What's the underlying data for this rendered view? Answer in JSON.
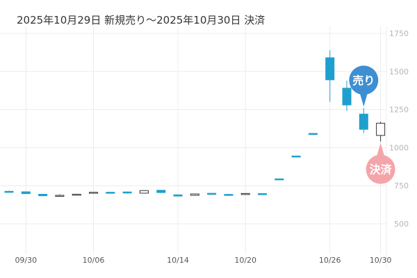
{
  "chart_data": {
    "type": "candlestick",
    "title": "2025年10月29日 新規売り～2025年10月30日 決済",
    "ylim": [
      350,
      1800
    ],
    "y_ticks": [
      "500",
      "750",
      "1000",
      "1250",
      "1500",
      "1750"
    ],
    "grid": true,
    "x_ticks": [
      {
        "label": "09/30",
        "index": 1
      },
      {
        "label": "10/06",
        "index": 5
      },
      {
        "label": "10/14",
        "index": 10
      },
      {
        "label": "10/20",
        "index": 14
      },
      {
        "label": "10/26",
        "index": 19
      },
      {
        "label": "10/30",
        "index": 22
      }
    ],
    "candles": [
      {
        "o": 713,
        "h": 717,
        "l": 706,
        "c": 709
      },
      {
        "o": 710,
        "h": 712,
        "l": 696,
        "c": 698
      },
      {
        "o": 694,
        "h": 696,
        "l": 682,
        "c": 684
      },
      {
        "o": 687,
        "h": 693,
        "l": 683,
        "c": 687
      },
      {
        "o": 694,
        "h": 697,
        "l": 692,
        "c": 694
      },
      {
        "o": 705,
        "h": 710,
        "l": 703,
        "c": 707
      },
      {
        "o": 707,
        "h": 711,
        "l": 701,
        "c": 704
      },
      {
        "o": 709,
        "h": 712,
        "l": 698,
        "c": 702
      },
      {
        "o": 701,
        "h": 720,
        "l": 700,
        "c": 718
      },
      {
        "o": 720,
        "h": 722,
        "l": 702,
        "c": 705
      },
      {
        "o": 690,
        "h": 693,
        "l": 679,
        "c": 682
      },
      {
        "o": 687,
        "h": 698,
        "l": 684,
        "c": 696
      },
      {
        "o": 700,
        "h": 702,
        "l": 697,
        "c": 699
      },
      {
        "o": 693,
        "h": 696,
        "l": 686,
        "c": 689
      },
      {
        "o": 698,
        "h": 700,
        "l": 696,
        "c": 699
      },
      {
        "o": 698,
        "h": 699,
        "l": 694,
        "c": 695
      },
      {
        "o": 795,
        "h": 796,
        "l": 790,
        "c": 793
      },
      {
        "o": 945,
        "h": 946,
        "l": 940,
        "c": 943
      },
      {
        "o": 1093,
        "h": 1095,
        "l": 1088,
        "c": 1091
      },
      {
        "o": 1590,
        "h": 1640,
        "l": 1300,
        "c": 1445
      },
      {
        "o": 1390,
        "h": 1440,
        "l": 1240,
        "c": 1280
      },
      {
        "o": 1220,
        "h": 1260,
        "l": 1095,
        "c": 1120
      },
      {
        "o": 1080,
        "h": 1170,
        "l": 1040,
        "c": 1160
      }
    ],
    "up_color": "#ffffff",
    "down_color": "#1e9fce",
    "markers": [
      {
        "label": "売り",
        "index": 21,
        "price": 1260,
        "position": "above",
        "color": "#3d8fd1"
      },
      {
        "label": "決済",
        "index": 22,
        "price": 1040,
        "position": "below",
        "color": "#f4a5a9"
      }
    ]
  }
}
